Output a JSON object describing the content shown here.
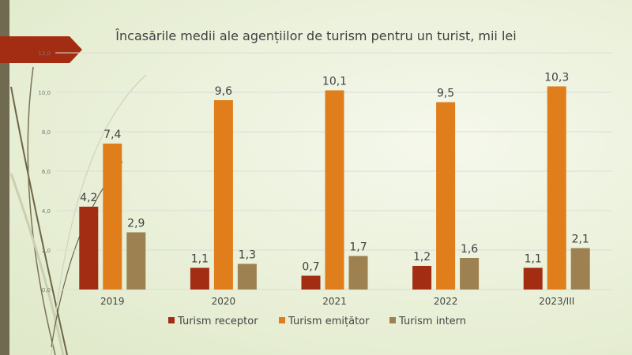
{
  "chart_data": {
    "type": "bar",
    "title": "Încasările medii ale agențiilor de turism pentru un turist, mii lei",
    "categories": [
      "2019",
      "2020",
      "2021",
      "2022",
      "2023/III"
    ],
    "series": [
      {
        "name": "Turism receptor",
        "color": "#a32d12",
        "values": [
          4.2,
          1.1,
          0.7,
          1.2,
          1.1
        ],
        "labels": [
          "4,2",
          "1,1",
          "0,7",
          "1,2",
          "1,1"
        ]
      },
      {
        "name": "Turism emițător",
        "color": "#df7e1a",
        "values": [
          7.4,
          9.6,
          10.1,
          9.5,
          10.3
        ],
        "labels": [
          "7,4",
          "9,6",
          "10,1",
          "9,5",
          "10,3"
        ]
      },
      {
        "name": "Turism intern",
        "color": "#9d8150",
        "values": [
          2.9,
          1.3,
          1.7,
          1.6,
          2.1
        ],
        "labels": [
          "2,9",
          "1,3",
          "1,7",
          "1,6",
          "2,1"
        ]
      }
    ],
    "yticks": [
      "0,0",
      "2,0",
      "4,0",
      "6,0",
      "8,0",
      "10,0",
      "12,0"
    ],
    "ylim": [
      0,
      12
    ],
    "grid": true,
    "legend": "bottom",
    "xlabel": "",
    "ylabel": ""
  }
}
